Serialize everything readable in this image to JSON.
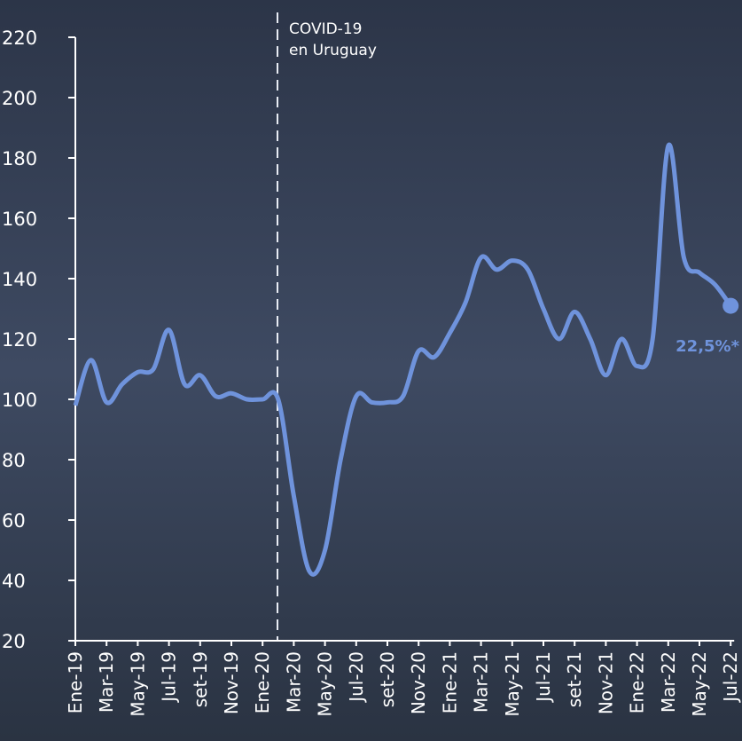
{
  "chart_data": {
    "type": "line",
    "categories": [
      "Ene-19",
      null,
      "Mar-19",
      null,
      "May-19",
      null,
      "Jul-19",
      null,
      "set-19",
      null,
      "Nov-19",
      null,
      "Ene-20",
      null,
      "Mar-20",
      null,
      "May-20",
      null,
      "Jul-20",
      null,
      "set-20",
      null,
      "Nov-20",
      null,
      "Ene-21",
      null,
      "Mar-21",
      null,
      "May-21",
      null,
      "Jul-21",
      null,
      "set-21",
      null,
      "Nov-21",
      null,
      "Ene-22",
      null,
      "Mar-22",
      null,
      "May-22",
      null,
      "Jul-22"
    ],
    "series": [
      {
        "color": "#6f93dc",
        "values": [
          98,
          113,
          99,
          105,
          109,
          110,
          123,
          105,
          108,
          101,
          102,
          100,
          100,
          100,
          68,
          43,
          50,
          80,
          101,
          99,
          99,
          101,
          116,
          114,
          122,
          132,
          147,
          143,
          146,
          143,
          130,
          120,
          129,
          120,
          108,
          120,
          111,
          120,
          184,
          147,
          142,
          138,
          131
        ]
      }
    ],
    "ylim": [
      20,
      220
    ],
    "yticks": [
      20,
      40,
      60,
      80,
      100,
      120,
      140,
      160,
      180,
      200,
      220
    ],
    "annotations": [
      "COVID-19",
      "en Uruguay",
      "22,5%*"
    ]
  }
}
